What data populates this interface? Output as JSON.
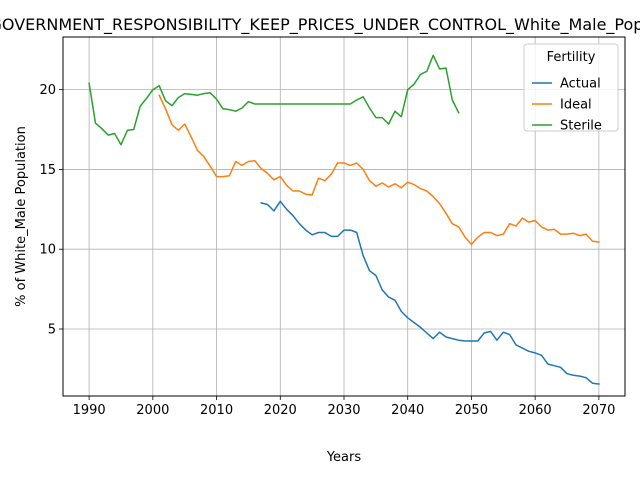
{
  "chart_data": {
    "type": "line",
    "title": "GOVERNMENT_RESPONSIBILITY_KEEP_PRICES_UNDER_CONTROL_White_Male_Population",
    "xlabel": "Years",
    "ylabel": "% of White_Male Population",
    "xlim": [
      1985.9,
      2074.1
    ],
    "ylim": [
      0.8,
      23.3
    ],
    "xticks": [
      1990,
      2000,
      2010,
      2020,
      2030,
      2040,
      2050,
      2060,
      2070
    ],
    "yticks": [
      5,
      10,
      15,
      20
    ],
    "grid": true,
    "legend": {
      "title": "Fertility",
      "placement": "upper right"
    },
    "series": [
      {
        "name": "Actual",
        "color": "#1f77b4",
        "x": [
          2017,
          2018,
          2019,
          2020,
          2021,
          2022,
          2023,
          2024,
          2025,
          2026,
          2027,
          2028,
          2029,
          2030,
          2031,
          2032,
          2033,
          2034,
          2035,
          2036,
          2037,
          2038,
          2039,
          2040,
          2041,
          2042,
          2043,
          2044,
          2045,
          2046,
          2047,
          2048,
          2049,
          2050,
          2051,
          2052,
          2053,
          2054,
          2055,
          2056,
          2057,
          2058,
          2059,
          2060,
          2061,
          2062,
          2063,
          2064,
          2065,
          2066,
          2067,
          2068,
          2069,
          2070
        ],
        "y": [
          12.9,
          12.8,
          12.4,
          13.0,
          12.5,
          12.1,
          11.6,
          11.2,
          10.9,
          11.05,
          11.05,
          10.8,
          10.8,
          11.2,
          11.2,
          11.05,
          9.6,
          8.65,
          8.35,
          7.45,
          7.0,
          6.8,
          6.1,
          5.7,
          5.4,
          5.1,
          4.75,
          4.4,
          4.8,
          4.5,
          4.4,
          4.3,
          4.25,
          4.25,
          4.25,
          4.75,
          4.85,
          4.3,
          4.8,
          4.65,
          4.0,
          3.8,
          3.6,
          3.5,
          3.35,
          2.8,
          2.7,
          2.6,
          2.2,
          2.1,
          2.05,
          1.95,
          1.6,
          1.55
        ]
      },
      {
        "name": "Ideal",
        "color": "#ff7f0e",
        "x": [
          2001,
          2002,
          2003,
          2004,
          2005,
          2006,
          2007,
          2008,
          2009,
          2010,
          2011,
          2012,
          2013,
          2014,
          2015,
          2016,
          2017,
          2018,
          2019,
          2020,
          2021,
          2022,
          2023,
          2024,
          2025,
          2026,
          2027,
          2028,
          2029,
          2030,
          2031,
          2032,
          2033,
          2034,
          2035,
          2036,
          2037,
          2038,
          2039,
          2040,
          2041,
          2042,
          2043,
          2044,
          2045,
          2046,
          2047,
          2048,
          2049,
          2050,
          2051,
          2052,
          2053,
          2054,
          2055,
          2056,
          2057,
          2058,
          2059,
          2060,
          2061,
          2062,
          2063,
          2064,
          2065,
          2066,
          2067,
          2068,
          2069,
          2070
        ],
        "y": [
          19.65,
          18.8,
          17.8,
          17.45,
          17.85,
          17.05,
          16.2,
          15.8,
          15.2,
          14.55,
          14.55,
          14.6,
          15.5,
          15.25,
          15.5,
          15.55,
          15.05,
          14.75,
          14.35,
          14.55,
          14.0,
          13.65,
          13.65,
          13.45,
          13.4,
          14.45,
          14.3,
          14.7,
          15.4,
          15.4,
          15.25,
          15.4,
          15.0,
          14.3,
          13.95,
          14.15,
          13.9,
          14.1,
          13.85,
          14.2,
          14.05,
          13.8,
          13.65,
          13.3,
          12.85,
          12.25,
          11.6,
          11.4,
          10.75,
          10.3,
          10.75,
          11.05,
          11.05,
          10.85,
          10.95,
          11.6,
          11.45,
          11.95,
          11.7,
          11.8,
          11.4,
          11.2,
          11.25,
          10.95,
          10.95,
          11.0,
          10.85,
          10.95,
          10.5,
          10.45
        ]
      },
      {
        "name": "Sterile",
        "color": "#2ca02c",
        "x": [
          1990,
          1991,
          1992,
          1993,
          1994,
          1995,
          1996,
          1997,
          1998,
          1999,
          2000,
          2001,
          2002,
          2003,
          2004,
          2005,
          2006,
          2007,
          2008,
          2009,
          2010,
          2011,
          2012,
          2013,
          2014,
          2015,
          2016,
          2017,
          2018,
          2019,
          2020,
          2021,
          2022,
          2023,
          2024,
          2025,
          2026,
          2027,
          2028,
          2029,
          2030,
          2031,
          2032,
          2033,
          2034,
          2035,
          2036,
          2037,
          2038,
          2039,
          2040,
          2041,
          2042,
          2043,
          2044,
          2045,
          2046,
          2047,
          2048
        ],
        "y": [
          20.4,
          17.9,
          17.55,
          17.15,
          17.25,
          16.55,
          17.45,
          17.5,
          18.95,
          19.45,
          20.0,
          20.25,
          19.3,
          19.0,
          19.5,
          19.75,
          19.7,
          19.65,
          19.75,
          19.8,
          19.4,
          18.8,
          18.75,
          18.65,
          18.85,
          19.25,
          19.1,
          19.1,
          19.1,
          19.1,
          19.1,
          19.1,
          19.1,
          19.1,
          19.1,
          19.1,
          19.1,
          19.1,
          19.1,
          19.1,
          19.1,
          19.1,
          19.35,
          19.55,
          18.85,
          18.25,
          18.25,
          17.85,
          18.65,
          18.3,
          20.0,
          20.35,
          20.95,
          21.15,
          22.15,
          21.3,
          21.35,
          19.35,
          18.55
        ]
      }
    ]
  }
}
